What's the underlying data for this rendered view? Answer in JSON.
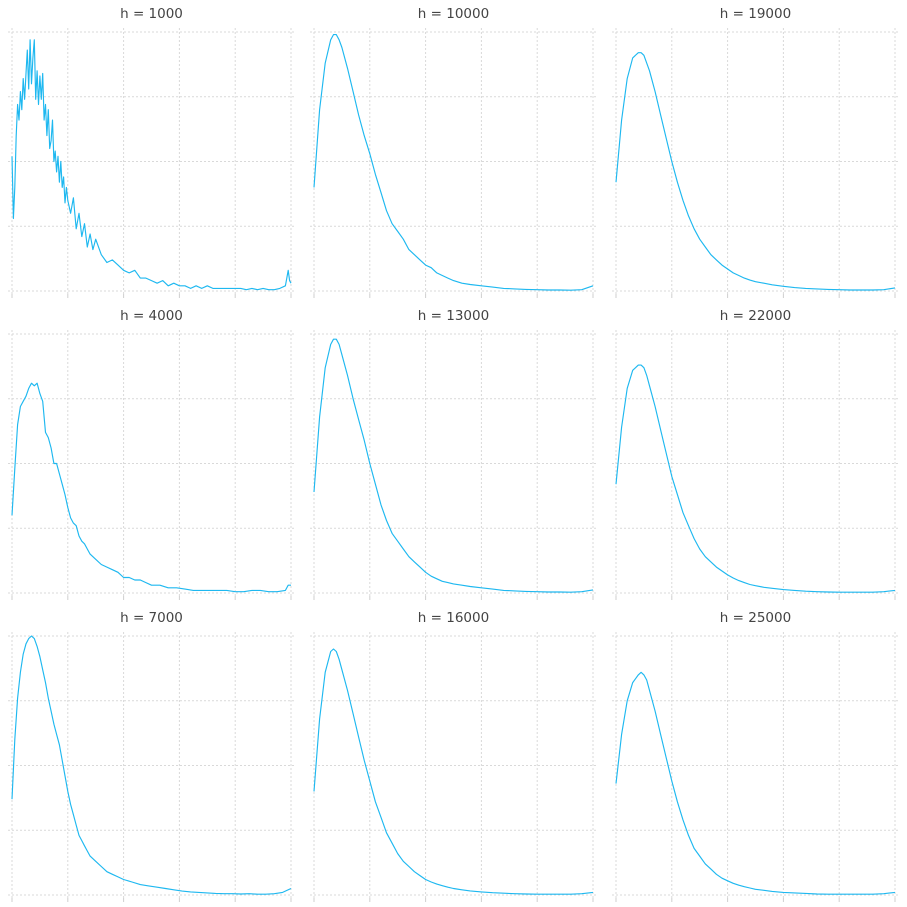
{
  "colors": {
    "series": "#1EB8F0",
    "grid": "#d9d9d9",
    "title": "#444444"
  },
  "chart_data": [
    {
      "type": "line",
      "title": "h = 1000",
      "grid": true,
      "xlim": [
        0,
        1
      ],
      "ylim": [
        0,
        1
      ],
      "x": [
        0,
        0.005,
        0.01,
        0.015,
        0.02,
        0.025,
        0.03,
        0.035,
        0.04,
        0.045,
        0.05,
        0.055,
        0.06,
        0.065,
        0.07,
        0.075,
        0.08,
        0.085,
        0.09,
        0.095,
        0.1,
        0.105,
        0.11,
        0.115,
        0.12,
        0.125,
        0.13,
        0.135,
        0.14,
        0.145,
        0.15,
        0.155,
        0.16,
        0.165,
        0.17,
        0.175,
        0.18,
        0.185,
        0.19,
        0.195,
        0.2,
        0.21,
        0.22,
        0.23,
        0.24,
        0.25,
        0.26,
        0.27,
        0.28,
        0.29,
        0.3,
        0.32,
        0.34,
        0.36,
        0.38,
        0.4,
        0.42,
        0.44,
        0.46,
        0.48,
        0.5,
        0.52,
        0.54,
        0.56,
        0.58,
        0.6,
        0.62,
        0.64,
        0.66,
        0.68,
        0.7,
        0.72,
        0.74,
        0.76,
        0.78,
        0.8,
        0.82,
        0.84,
        0.86,
        0.88,
        0.9,
        0.92,
        0.94,
        0.96,
        0.98,
        0.985,
        0.99,
        0.995,
        1
      ],
      "values": [
        0.52,
        0.28,
        0.4,
        0.6,
        0.72,
        0.66,
        0.77,
        0.7,
        0.82,
        0.74,
        0.84,
        0.93,
        0.78,
        0.97,
        0.8,
        0.9,
        0.97,
        0.74,
        0.85,
        0.72,
        0.83,
        0.74,
        0.84,
        0.66,
        0.72,
        0.6,
        0.7,
        0.55,
        0.58,
        0.66,
        0.5,
        0.54,
        0.46,
        0.52,
        0.42,
        0.5,
        0.4,
        0.44,
        0.34,
        0.4,
        0.35,
        0.3,
        0.36,
        0.24,
        0.3,
        0.21,
        0.26,
        0.17,
        0.22,
        0.16,
        0.2,
        0.14,
        0.11,
        0.12,
        0.1,
        0.08,
        0.07,
        0.08,
        0.05,
        0.05,
        0.04,
        0.03,
        0.04,
        0.02,
        0.03,
        0.02,
        0.02,
        0.01,
        0.02,
        0.01,
        0.02,
        0.01,
        0.01,
        0.01,
        0.01,
        0.01,
        0.01,
        0.005,
        0.01,
        0.005,
        0.01,
        0.005,
        0.005,
        0.01,
        0.02,
        0.05,
        0.08,
        0.04,
        0.03
      ]
    },
    {
      "type": "line",
      "title": "h = 4000",
      "grid": true,
      "xlim": [
        0,
        1
      ],
      "ylim": [
        0,
        1
      ],
      "x": [
        0,
        0.01,
        0.02,
        0.03,
        0.04,
        0.05,
        0.06,
        0.07,
        0.08,
        0.09,
        0.1,
        0.11,
        0.12,
        0.13,
        0.14,
        0.15,
        0.16,
        0.17,
        0.18,
        0.19,
        0.2,
        0.21,
        0.22,
        0.23,
        0.24,
        0.25,
        0.26,
        0.27,
        0.28,
        0.29,
        0.3,
        0.32,
        0.34,
        0.36,
        0.38,
        0.4,
        0.42,
        0.44,
        0.46,
        0.48,
        0.5,
        0.53,
        0.56,
        0.59,
        0.62,
        0.65,
        0.68,
        0.71,
        0.74,
        0.77,
        0.8,
        0.83,
        0.86,
        0.89,
        0.92,
        0.95,
        0.98,
        0.99,
        1
      ],
      "values": [
        0.3,
        0.48,
        0.65,
        0.72,
        0.74,
        0.76,
        0.79,
        0.81,
        0.8,
        0.81,
        0.77,
        0.74,
        0.62,
        0.6,
        0.56,
        0.5,
        0.5,
        0.46,
        0.42,
        0.38,
        0.33,
        0.29,
        0.27,
        0.26,
        0.22,
        0.2,
        0.19,
        0.17,
        0.15,
        0.14,
        0.13,
        0.11,
        0.1,
        0.09,
        0.08,
        0.06,
        0.06,
        0.05,
        0.05,
        0.04,
        0.03,
        0.03,
        0.02,
        0.02,
        0.015,
        0.01,
        0.01,
        0.01,
        0.01,
        0.01,
        0.005,
        0.005,
        0.01,
        0.01,
        0.005,
        0.005,
        0.01,
        0.03,
        0.03
      ]
    },
    {
      "type": "line",
      "title": "h = 7000",
      "grid": true,
      "xlim": [
        0,
        1
      ],
      "ylim": [
        0,
        1
      ],
      "x": [
        0,
        0.01,
        0.02,
        0.03,
        0.04,
        0.05,
        0.06,
        0.07,
        0.08,
        0.09,
        0.1,
        0.11,
        0.12,
        0.13,
        0.14,
        0.15,
        0.16,
        0.17,
        0.18,
        0.19,
        0.2,
        0.21,
        0.22,
        0.23,
        0.24,
        0.25,
        0.26,
        0.27,
        0.28,
        0.29,
        0.3,
        0.32,
        0.34,
        0.36,
        0.38,
        0.4,
        0.43,
        0.46,
        0.49,
        0.52,
        0.55,
        0.58,
        0.61,
        0.64,
        0.67,
        0.7,
        0.73,
        0.76,
        0.79,
        0.82,
        0.85,
        0.88,
        0.91,
        0.94,
        0.97,
        1
      ],
      "values": [
        0.37,
        0.6,
        0.76,
        0.86,
        0.93,
        0.97,
        0.99,
        1.0,
        0.99,
        0.96,
        0.92,
        0.87,
        0.82,
        0.76,
        0.71,
        0.66,
        0.62,
        0.58,
        0.52,
        0.46,
        0.4,
        0.35,
        0.31,
        0.27,
        0.23,
        0.21,
        0.19,
        0.17,
        0.15,
        0.14,
        0.13,
        0.11,
        0.09,
        0.08,
        0.07,
        0.06,
        0.05,
        0.04,
        0.035,
        0.03,
        0.025,
        0.02,
        0.015,
        0.012,
        0.01,
        0.008,
        0.006,
        0.005,
        0.005,
        0.004,
        0.005,
        0.003,
        0.003,
        0.005,
        0.01,
        0.025
      ]
    },
    {
      "type": "line",
      "title": "h = 10000",
      "grid": true,
      "xlim": [
        0,
        1
      ],
      "ylim": [
        0,
        1
      ],
      "x": [
        0,
        0.02,
        0.04,
        0.06,
        0.07,
        0.08,
        0.09,
        0.1,
        0.12,
        0.14,
        0.16,
        0.18,
        0.2,
        0.22,
        0.24,
        0.26,
        0.28,
        0.3,
        0.32,
        0.34,
        0.36,
        0.38,
        0.4,
        0.42,
        0.44,
        0.46,
        0.48,
        0.5,
        0.53,
        0.56,
        0.6,
        0.64,
        0.68,
        0.72,
        0.76,
        0.8,
        0.84,
        0.88,
        0.92,
        0.96,
        1
      ],
      "values": [
        0.4,
        0.7,
        0.88,
        0.97,
        0.99,
        0.99,
        0.97,
        0.94,
        0.86,
        0.77,
        0.68,
        0.6,
        0.53,
        0.45,
        0.38,
        0.31,
        0.26,
        0.23,
        0.2,
        0.16,
        0.14,
        0.12,
        0.1,
        0.09,
        0.07,
        0.06,
        0.05,
        0.04,
        0.03,
        0.025,
        0.02,
        0.015,
        0.01,
        0.008,
        0.006,
        0.005,
        0.004,
        0.004,
        0.003,
        0.005,
        0.02
      ]
    },
    {
      "type": "line",
      "title": "h = 13000",
      "grid": true,
      "xlim": [
        0,
        1
      ],
      "ylim": [
        0,
        1
      ],
      "x": [
        0,
        0.02,
        0.04,
        0.06,
        0.07,
        0.08,
        0.09,
        0.1,
        0.12,
        0.14,
        0.16,
        0.18,
        0.2,
        0.22,
        0.24,
        0.26,
        0.28,
        0.3,
        0.32,
        0.34,
        0.36,
        0.38,
        0.4,
        0.42,
        0.44,
        0.46,
        0.48,
        0.5,
        0.53,
        0.56,
        0.6,
        0.64,
        0.68,
        0.72,
        0.76,
        0.8,
        0.84,
        0.88,
        0.92,
        0.96,
        1
      ],
      "values": [
        0.39,
        0.68,
        0.87,
        0.96,
        0.98,
        0.98,
        0.96,
        0.92,
        0.84,
        0.75,
        0.67,
        0.59,
        0.5,
        0.42,
        0.34,
        0.28,
        0.23,
        0.2,
        0.17,
        0.14,
        0.12,
        0.1,
        0.08,
        0.065,
        0.055,
        0.045,
        0.04,
        0.035,
        0.03,
        0.025,
        0.02,
        0.015,
        0.01,
        0.008,
        0.006,
        0.005,
        0.004,
        0.004,
        0.003,
        0.005,
        0.012
      ]
    },
    {
      "type": "line",
      "title": "h = 16000",
      "grid": true,
      "xlim": [
        0,
        1
      ],
      "ylim": [
        0,
        1
      ],
      "x": [
        0,
        0.02,
        0.04,
        0.06,
        0.07,
        0.08,
        0.09,
        0.1,
        0.12,
        0.14,
        0.16,
        0.18,
        0.2,
        0.22,
        0.24,
        0.26,
        0.28,
        0.3,
        0.32,
        0.34,
        0.36,
        0.38,
        0.4,
        0.42,
        0.44,
        0.46,
        0.48,
        0.5,
        0.53,
        0.56,
        0.6,
        0.64,
        0.68,
        0.72,
        0.76,
        0.8,
        0.84,
        0.88,
        0.92,
        0.96,
        1
      ],
      "values": [
        0.4,
        0.68,
        0.86,
        0.94,
        0.95,
        0.94,
        0.91,
        0.87,
        0.79,
        0.7,
        0.61,
        0.52,
        0.44,
        0.36,
        0.3,
        0.24,
        0.2,
        0.16,
        0.13,
        0.11,
        0.09,
        0.075,
        0.06,
        0.05,
        0.042,
        0.036,
        0.03,
        0.025,
        0.02,
        0.016,
        0.012,
        0.009,
        0.007,
        0.005,
        0.004,
        0.003,
        0.003,
        0.003,
        0.003,
        0.005,
        0.01
      ]
    },
    {
      "type": "line",
      "title": "h = 19000",
      "grid": true,
      "xlim": [
        0,
        1
      ],
      "ylim": [
        0,
        1
      ],
      "x": [
        0,
        0.02,
        0.04,
        0.06,
        0.08,
        0.09,
        0.1,
        0.11,
        0.12,
        0.14,
        0.16,
        0.18,
        0.2,
        0.22,
        0.24,
        0.26,
        0.28,
        0.3,
        0.32,
        0.34,
        0.36,
        0.38,
        0.4,
        0.42,
        0.44,
        0.46,
        0.48,
        0.5,
        0.53,
        0.56,
        0.6,
        0.64,
        0.68,
        0.72,
        0.76,
        0.8,
        0.84,
        0.88,
        0.92,
        0.96,
        1
      ],
      "values": [
        0.42,
        0.66,
        0.82,
        0.9,
        0.92,
        0.92,
        0.91,
        0.88,
        0.85,
        0.77,
        0.68,
        0.59,
        0.5,
        0.42,
        0.35,
        0.29,
        0.24,
        0.2,
        0.17,
        0.14,
        0.12,
        0.1,
        0.085,
        0.07,
        0.06,
        0.05,
        0.042,
        0.036,
        0.03,
        0.024,
        0.018,
        0.013,
        0.01,
        0.008,
        0.006,
        0.005,
        0.004,
        0.004,
        0.004,
        0.005,
        0.012
      ]
    },
    {
      "type": "line",
      "title": "h = 22000",
      "grid": true,
      "xlim": [
        0,
        1
      ],
      "ylim": [
        0,
        1
      ],
      "x": [
        0,
        0.02,
        0.04,
        0.06,
        0.08,
        0.09,
        0.1,
        0.11,
        0.12,
        0.14,
        0.16,
        0.18,
        0.2,
        0.22,
        0.24,
        0.26,
        0.28,
        0.3,
        0.32,
        0.34,
        0.36,
        0.38,
        0.4,
        0.42,
        0.44,
        0.46,
        0.48,
        0.5,
        0.53,
        0.56,
        0.6,
        0.64,
        0.68,
        0.72,
        0.76,
        0.8,
        0.84,
        0.88,
        0.92,
        0.96,
        1
      ],
      "values": [
        0.42,
        0.64,
        0.79,
        0.86,
        0.88,
        0.88,
        0.87,
        0.84,
        0.8,
        0.72,
        0.63,
        0.54,
        0.45,
        0.38,
        0.31,
        0.26,
        0.21,
        0.17,
        0.14,
        0.12,
        0.1,
        0.085,
        0.07,
        0.058,
        0.048,
        0.04,
        0.033,
        0.028,
        0.022,
        0.018,
        0.013,
        0.01,
        0.007,
        0.005,
        0.004,
        0.003,
        0.003,
        0.003,
        0.003,
        0.005,
        0.01
      ]
    },
    {
      "type": "line",
      "title": "h = 25000",
      "grid": true,
      "xlim": [
        0,
        1
      ],
      "ylim": [
        0,
        1
      ],
      "x": [
        0,
        0.02,
        0.04,
        0.06,
        0.08,
        0.09,
        0.1,
        0.11,
        0.12,
        0.14,
        0.16,
        0.18,
        0.2,
        0.22,
        0.24,
        0.26,
        0.28,
        0.3,
        0.32,
        0.34,
        0.36,
        0.38,
        0.4,
        0.42,
        0.44,
        0.46,
        0.48,
        0.5,
        0.53,
        0.56,
        0.6,
        0.64,
        0.68,
        0.72,
        0.76,
        0.8,
        0.84,
        0.88,
        0.92,
        0.96,
        1
      ],
      "values": [
        0.43,
        0.62,
        0.75,
        0.82,
        0.85,
        0.86,
        0.85,
        0.83,
        0.79,
        0.71,
        0.62,
        0.53,
        0.44,
        0.36,
        0.29,
        0.23,
        0.18,
        0.15,
        0.12,
        0.1,
        0.08,
        0.065,
        0.055,
        0.045,
        0.038,
        0.032,
        0.027,
        0.022,
        0.018,
        0.014,
        0.01,
        0.008,
        0.006,
        0.004,
        0.003,
        0.003,
        0.003,
        0.003,
        0.003,
        0.005,
        0.01
      ]
    }
  ]
}
